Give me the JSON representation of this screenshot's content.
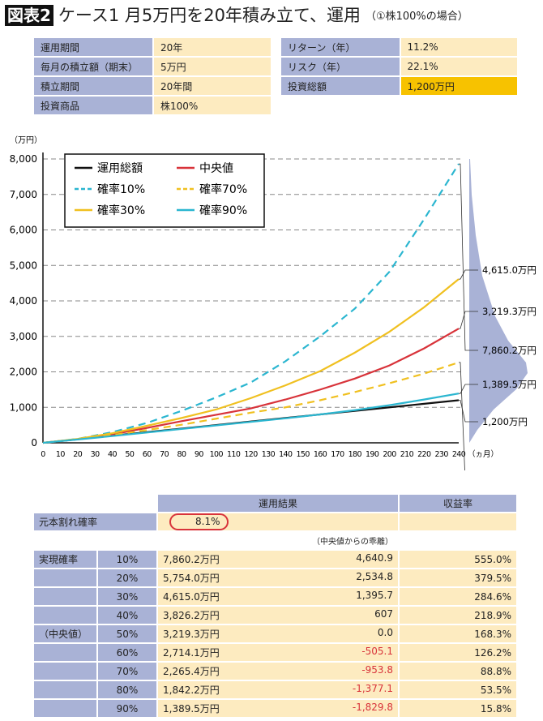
{
  "title": {
    "tag": "図表2",
    "main": "ケース1 月5万円を20年積み立て、運用",
    "sub": "（①株100%の場合）"
  },
  "info_left": [
    [
      "運用期間",
      "20年"
    ],
    [
      "毎月の積立額（期末）",
      "5万円"
    ],
    [
      "積立期間",
      "20年間"
    ],
    [
      "投資商品",
      "株100%"
    ]
  ],
  "info_right": [
    [
      "リターン（年）",
      "11.2%"
    ],
    [
      "リスク（年）",
      "22.1%"
    ],
    [
      "投資総額",
      "1,200万円"
    ]
  ],
  "colors": {
    "header": "#a9b2d6",
    "cell": "#fdebc0",
    "highlight": "#f7c200",
    "negative": "#d8333a",
    "distribution": "#a9b2d6"
  },
  "chart_data": {
    "type": "line",
    "yunit": "（万円）",
    "xunit": "（ヵ月）",
    "xlim": [
      0,
      240
    ],
    "ylim": [
      0,
      8000
    ],
    "grid": "horizontal dashed",
    "legend_position": "top-left",
    "yticks": [
      "0",
      "1,000",
      "2,000",
      "3,000",
      "4,000",
      "5,000",
      "6,000",
      "7,000",
      "8,000"
    ],
    "x": [
      0,
      20,
      40,
      60,
      80,
      100,
      120,
      140,
      160,
      180,
      200,
      220,
      240
    ],
    "series": [
      {
        "name": "運用総額",
        "color": "#111111",
        "dash": false,
        "values": [
          0,
          100,
          200,
          300,
          400,
          500,
          600,
          700,
          800,
          900,
          1000,
          1100,
          1200
        ],
        "end_label": "1,200万円"
      },
      {
        "name": "中央値",
        "color": "#d8333a",
        "dash": false,
        "values": [
          0,
          100,
          240,
          420,
          610,
          790,
          970,
          1220,
          1500,
          1810,
          2180,
          2660,
          3219.3
        ],
        "end_label": "3,219.3万円"
      },
      {
        "name": "確率10%",
        "color": "#2bb6d0",
        "dash": true,
        "values": [
          0,
          110,
          300,
          560,
          900,
          1280,
          1700,
          2300,
          3000,
          3780,
          4820,
          6300,
          7860.2
        ],
        "end_label": "7,860.2万円"
      },
      {
        "name": "確率70%",
        "color": "#f0c020",
        "dash": true,
        "values": [
          0,
          100,
          220,
          360,
          510,
          680,
          850,
          1000,
          1200,
          1430,
          1680,
          1950,
          2265.4
        ],
        "end_label": "2,265.4万円"
      },
      {
        "name": "確率30%",
        "color": "#f0c020",
        "dash": false,
        "values": [
          0,
          110,
          270,
          480,
          700,
          940,
          1260,
          1620,
          2020,
          2540,
          3130,
          3820,
          4615.0
        ],
        "end_label": "4,615.0万円"
      },
      {
        "name": "確率90%",
        "color": "#2bb6d0",
        "dash": false,
        "values": [
          0,
          95,
          190,
          290,
          390,
          490,
          590,
          690,
          800,
          920,
          1060,
          1220,
          1389.5
        ],
        "end_label": "1,389.5万円"
      }
    ]
  },
  "results": {
    "headers": [
      "運用結果",
      "収益率"
    ],
    "loss_label": "元本割れ確率",
    "loss_value": "8.1%",
    "deviation_note": "（中央値からの乖離）",
    "group_label": "実現確率",
    "median_label": "（中央値）",
    "rows": [
      [
        "10%",
        "7,860.2万円",
        "4,640.9",
        "555.0%"
      ],
      [
        "20%",
        "5,754.0万円",
        "2,534.8",
        "379.5%"
      ],
      [
        "30%",
        "4,615.0万円",
        "1,395.7",
        "284.6%"
      ],
      [
        "40%",
        "3,826.2万円",
        "607",
        "218.9%"
      ],
      [
        "50%",
        "3,219.3万円",
        "0.0",
        "168.3%"
      ],
      [
        "60%",
        "2,714.1万円",
        "-505.1",
        "126.2%"
      ],
      [
        "70%",
        "2,265.4万円",
        "-953.8",
        "88.8%"
      ],
      [
        "80%",
        "1,842.2万円",
        "-1,377.1",
        "53.5%"
      ],
      [
        "90%",
        "1,389.5万円",
        "-1,829.8",
        "15.8%"
      ]
    ]
  }
}
